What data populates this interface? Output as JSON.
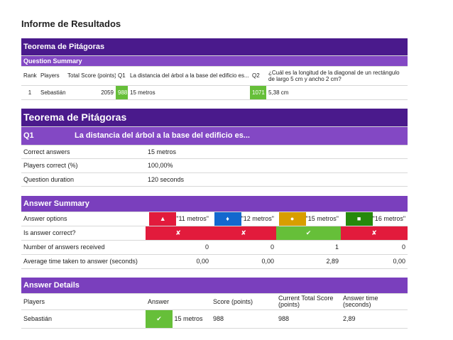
{
  "header": {
    "title": "Informe de Resultados"
  },
  "summary": {
    "title": "Teorema de Pitágoras",
    "subtitle": "Question Summary",
    "columns": [
      "Rank",
      "Players",
      "Total Score (points)",
      "Q1",
      "La distancia del árbol a la base del edificio es...",
      "Q2",
      "¿Cuál es la longitud de la diagonal de un rectángulo de largo 5 cm y ancho 2 cm?"
    ],
    "rows": [
      [
        "1",
        "Sebastián",
        "2059",
        "988",
        "15 metros",
        "1071",
        "5,38 cm"
      ]
    ]
  },
  "question": {
    "title": "Teorema de Pitágoras",
    "label": "Q1",
    "text": "La distancia del árbol a la base del edificio es...",
    "rows": [
      [
        "Correct answers",
        "15 metros"
      ],
      [
        "Players correct (%)",
        "100,00%"
      ],
      [
        "Question duration",
        "120 seconds"
      ]
    ]
  },
  "answer_summary": {
    "title": "Answer Summary",
    "options_label": "Answer options",
    "options": [
      "\"11 metros\"",
      "\"12 metros\"",
      "\"15 metros\"",
      "\"16 metros\""
    ],
    "correct_label": "Is answer correct?",
    "received_label": "Number of answers received",
    "received": [
      "0",
      "0",
      "1",
      "0"
    ],
    "time_label": "Average time taken to answer (seconds)",
    "time": [
      "0,00",
      "0,00",
      "2,89",
      "0,00"
    ]
  },
  "answer_details": {
    "title": "Answer Details",
    "columns": [
      "Players",
      "Answer",
      "Score (points)",
      "Current Total Score (points)",
      "Answer time (seconds)"
    ],
    "rows": [
      [
        "Sebastián",
        "15 metros",
        "988",
        "988",
        "2,89"
      ]
    ]
  }
}
